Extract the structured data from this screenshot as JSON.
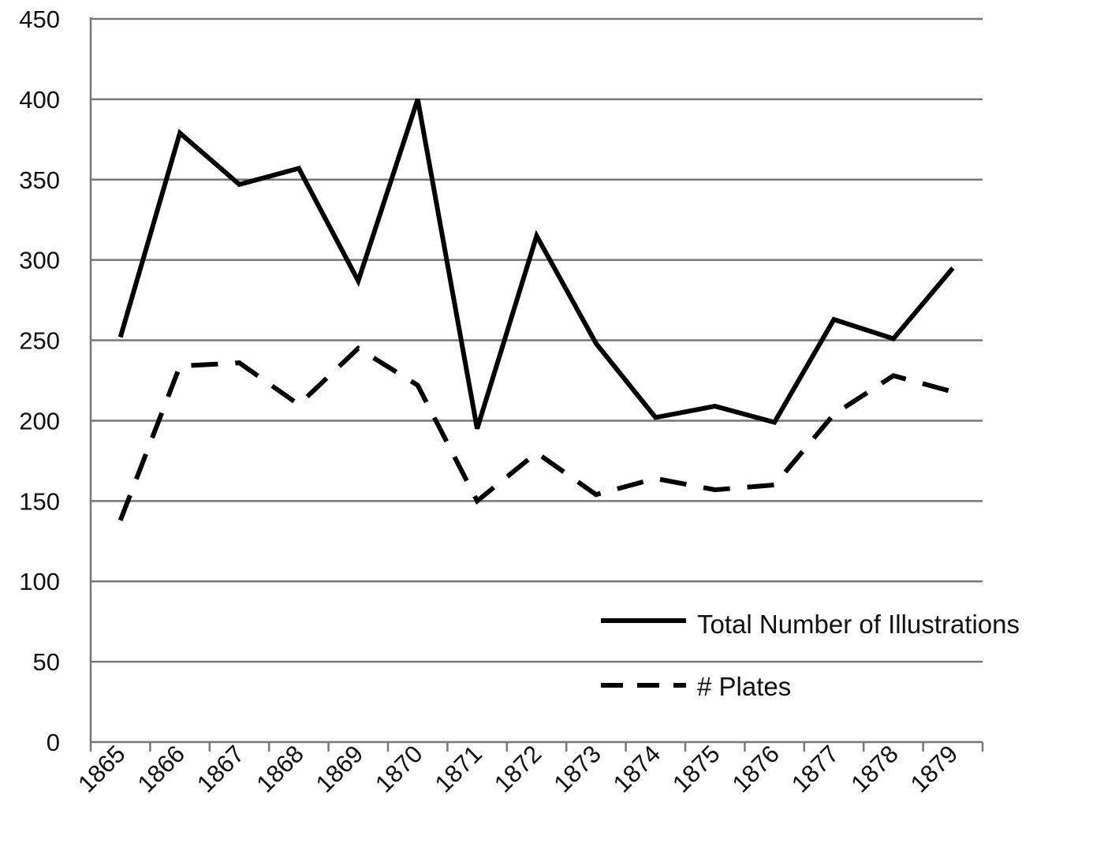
{
  "chart_data": {
    "type": "line",
    "title": "",
    "xlabel": "",
    "ylabel": "",
    "categories": [
      "1865",
      "1866",
      "1867",
      "1868",
      "1869",
      "1870",
      "1871",
      "1872",
      "1873",
      "1874",
      "1875",
      "1876",
      "1877",
      "1878",
      "1879"
    ],
    "ylim": [
      0,
      450
    ],
    "yticks": [
      "0",
      "50",
      "100",
      "150",
      "200",
      "250",
      "300",
      "350",
      "400",
      "450"
    ],
    "grid": true,
    "legend_position": "bottom-right",
    "series": [
      {
        "name": "Total Number of Illustrations",
        "line_style": "solid",
        "color": "#000000",
        "values": [
          252,
          379,
          347,
          357,
          287,
          400,
          195,
          315,
          248,
          202,
          209,
          199,
          263,
          251,
          295
        ]
      },
      {
        "name": "# Plates",
        "line_style": "dashed",
        "color": "#000000",
        "values": [
          138,
          234,
          236,
          210,
          245,
          222,
          150,
          180,
          154,
          164,
          157,
          160,
          204,
          228,
          218
        ]
      }
    ]
  }
}
